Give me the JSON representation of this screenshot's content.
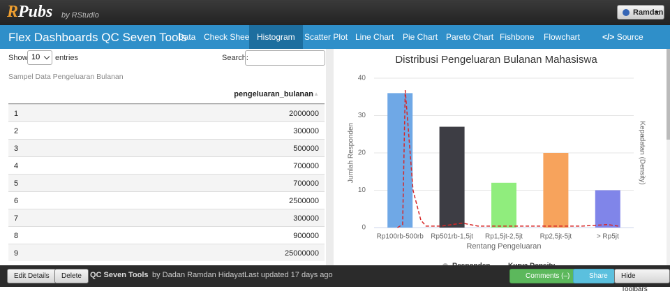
{
  "header": {
    "logo_r": "R",
    "logo": "Pubs",
    "by": "by RStudio",
    "user": "Ramdan"
  },
  "nav": {
    "brand": "Flex Dashboards QC Seven Tools",
    "items": [
      "Data",
      "Check Sheet",
      "Histogram",
      "Scatter Plot",
      "Line Chart",
      "Pie Chart",
      "Pareto Chart",
      "Fishbone",
      "Flowchart"
    ],
    "active": 2,
    "source": "Source Code"
  },
  "table": {
    "show": "Show",
    "length": "10",
    "entries": "entries",
    "search": "Search:",
    "caption": "Sampel Data Pengeluaran Bulanan",
    "column": "pengeluaran_bulanan",
    "rows": [
      [
        "1",
        2000000
      ],
      [
        "2",
        300000
      ],
      [
        "3",
        500000
      ],
      [
        "4",
        700000
      ],
      [
        "5",
        700000
      ],
      [
        "6",
        2500000
      ],
      [
        "7",
        300000
      ],
      [
        "8",
        900000
      ],
      [
        "9",
        25000000
      ]
    ]
  },
  "chart_data": {
    "type": "bar",
    "title": "Distribusi Pengeluaran Bulanan Mahasiswa",
    "x_label": "Rentang Pengeluaran",
    "y_label": "Jumlah Responden",
    "y2_label": "Kepadatan (Density)",
    "categories": [
      "Rp100rb-500rb",
      "Rp501rb-1,5jt",
      "Rp1,5jt-2,5jt",
      "Rp2,5jt-5jt",
      "> Rp5jt"
    ],
    "series": [
      {
        "name": "Responden",
        "colors": [
          "#6fa8e6",
          "#3d3d44",
          "#90ed7d",
          "#f7a35c",
          "#8085e9"
        ],
        "values": [
          36,
          27,
          12,
          20,
          10
        ]
      },
      {
        "name": "Kurva Density",
        "color": "#d62728",
        "axis": "y2",
        "x": [
          -0.05,
          0.05,
          0.1,
          0.15,
          0.25,
          0.4,
          0.5,
          0.8,
          1,
          1.2,
          1.5,
          2,
          2.5,
          3,
          3.5,
          4,
          4.2
        ],
        "values": [
          0,
          0.02,
          0.92,
          0.7,
          0.25,
          0.05,
          0.01,
          0.01,
          0.02,
          0.03,
          0.01,
          0.01,
          0.01,
          0.01,
          0.01,
          0.02,
          0.01
        ]
      }
    ],
    "ylim": [
      0,
      40
    ],
    "yticks": [
      0,
      10,
      20,
      30,
      40
    ],
    "y2lim": [
      0,
      1
    ],
    "grid": true
  },
  "footer": {
    "edit": "Edit Details",
    "delete": "Delete",
    "doc": "QC Seven Tools",
    "author": "by Dadan Ramdan Hidayat",
    "updated": "Last updated 17 days ago",
    "comments": "Comments (–)",
    "share": "Share",
    "hide": "Hide Toolbars"
  }
}
